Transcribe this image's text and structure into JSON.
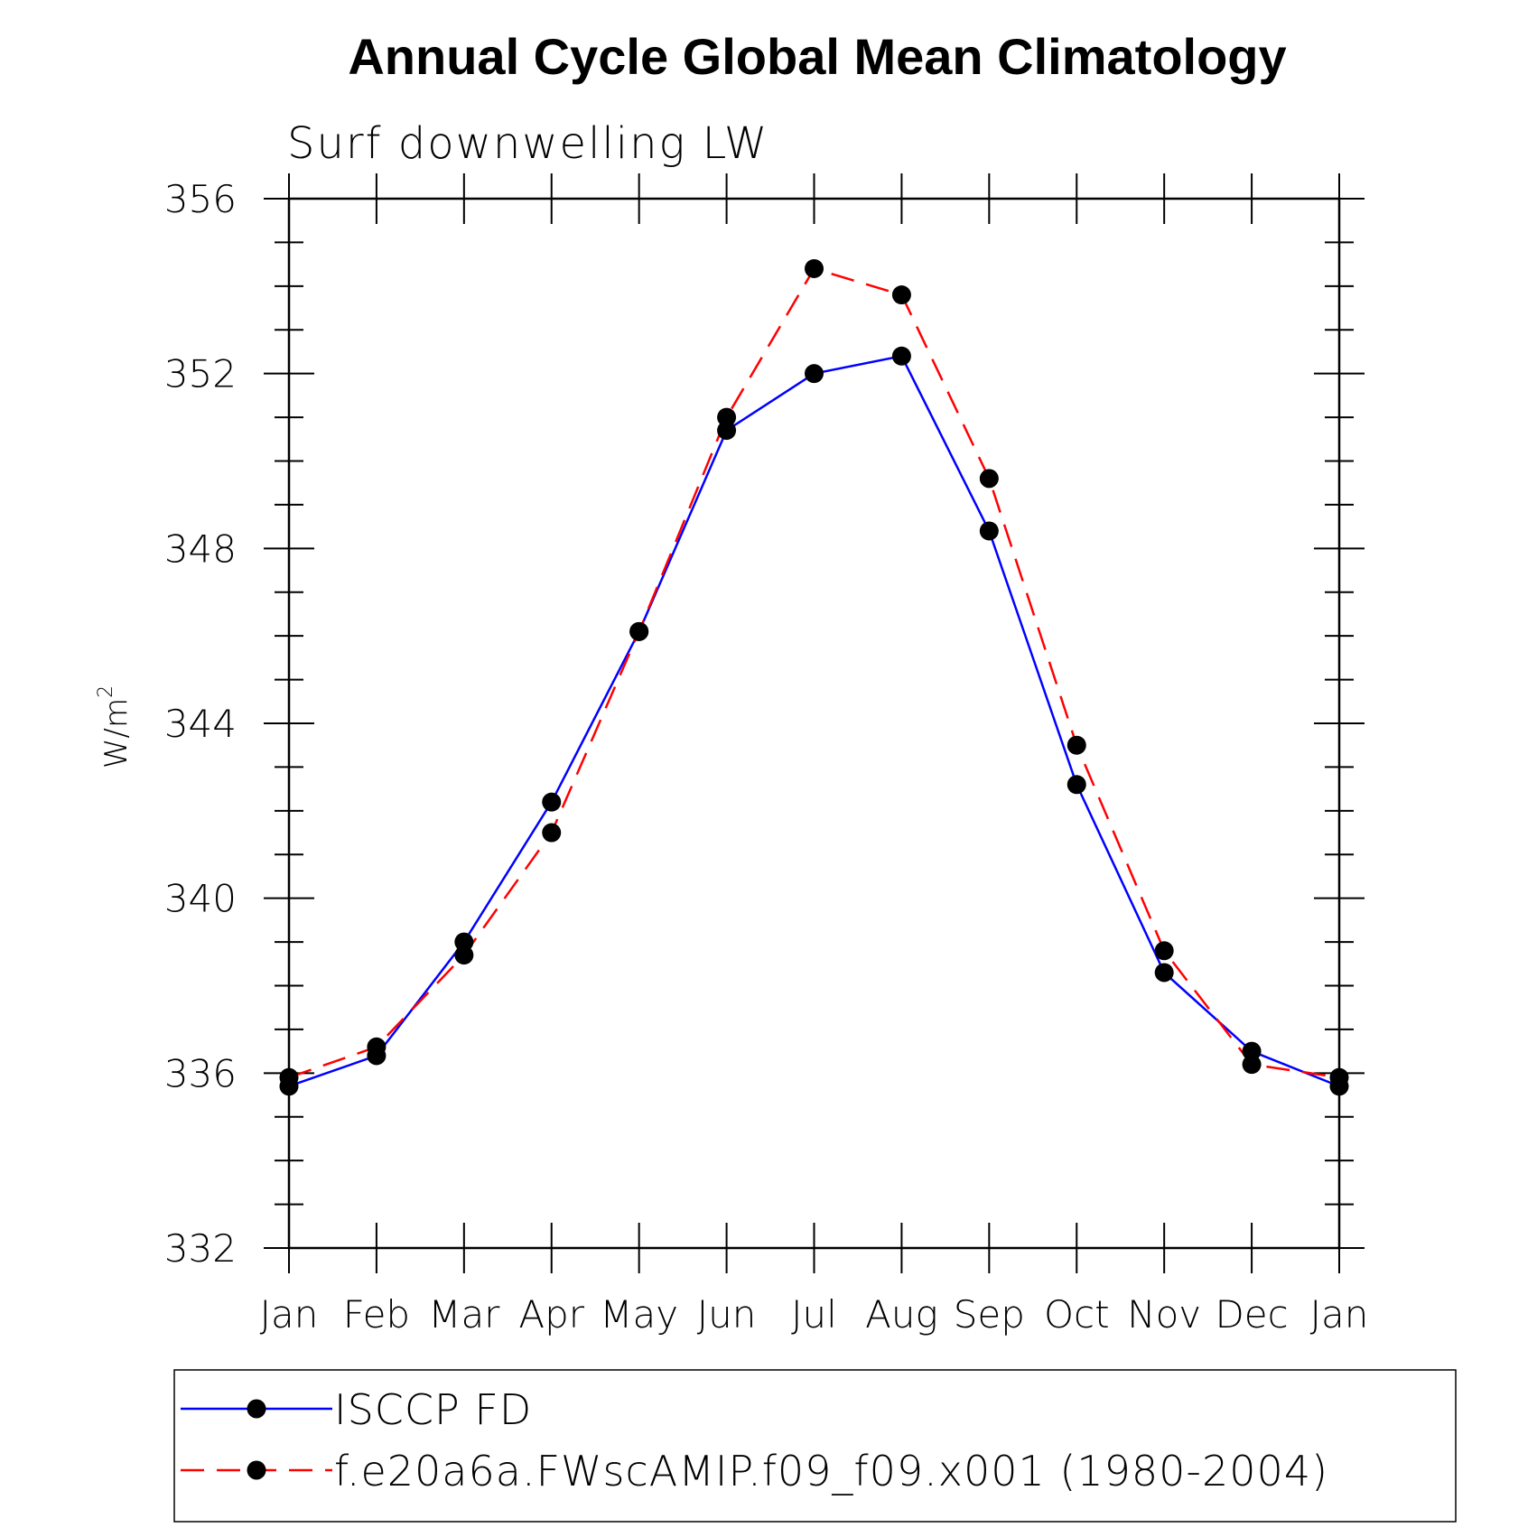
{
  "chart_data": {
    "type": "line",
    "title": "Annual Cycle Global Mean Climatology",
    "subtitle": "Surf downwelling LW",
    "ylabel": "W/m",
    "ylabel_superscript": "2",
    "xlabel": "",
    "categories": [
      "Jan",
      "Feb",
      "Mar",
      "Apr",
      "May",
      "Jun",
      "Jul",
      "Aug",
      "Sep",
      "Oct",
      "Nov",
      "Dec",
      "Jan"
    ],
    "ylim": [
      332,
      356
    ],
    "yticks": [
      332,
      336,
      340,
      344,
      348,
      352,
      356
    ],
    "grid": false,
    "legend_position": "bottom",
    "series": [
      {
        "name": "ISCCP FD",
        "color": "#0000ff",
        "line_style": "solid",
        "marker": "filled-circle",
        "values": [
          335.7,
          336.4,
          339.0,
          342.2,
          346.1,
          350.7,
          352.0,
          352.4,
          348.4,
          342.6,
          338.3,
          336.5,
          335.7
        ]
      },
      {
        "name": "f.e20a6a.FWscAMIP.f09_f09.x001 (1980-2004)",
        "color": "#ff0000",
        "line_style": "dashed",
        "marker": "filled-circle",
        "values": [
          335.9,
          336.6,
          338.7,
          341.5,
          346.1,
          351.0,
          354.4,
          353.8,
          349.6,
          343.5,
          338.8,
          336.2,
          335.9
        ]
      }
    ]
  }
}
